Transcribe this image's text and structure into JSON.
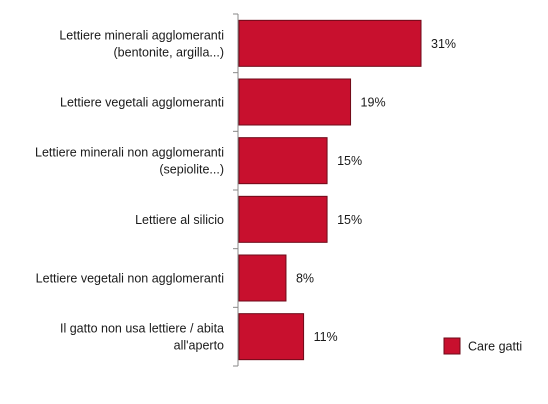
{
  "chart_data": {
    "type": "bar",
    "orientation": "horizontal",
    "categories": [
      [
        "Lettiere minerali agglomeranti",
        "(bentonite, argilla...)"
      ],
      [
        "Lettiere vegetali agglomeranti"
      ],
      [
        "Lettiere minerali non agglomeranti",
        "(sepiolite...)"
      ],
      [
        "Lettiere al silicio"
      ],
      [
        "Lettiere vegetali non agglomeranti"
      ],
      [
        "Il gatto non usa lettiere / abita",
        "all'aperto"
      ]
    ],
    "series": [
      {
        "name": "Care gatti",
        "values": [
          31,
          19,
          15,
          15,
          8,
          11
        ],
        "labels": [
          "31%",
          "19%",
          "15%",
          "15%",
          "8%",
          "11%"
        ],
        "color": "#c8102e"
      }
    ],
    "xlim": [
      0,
      35
    ],
    "grid": false,
    "legend_position": "bottom-right"
  }
}
